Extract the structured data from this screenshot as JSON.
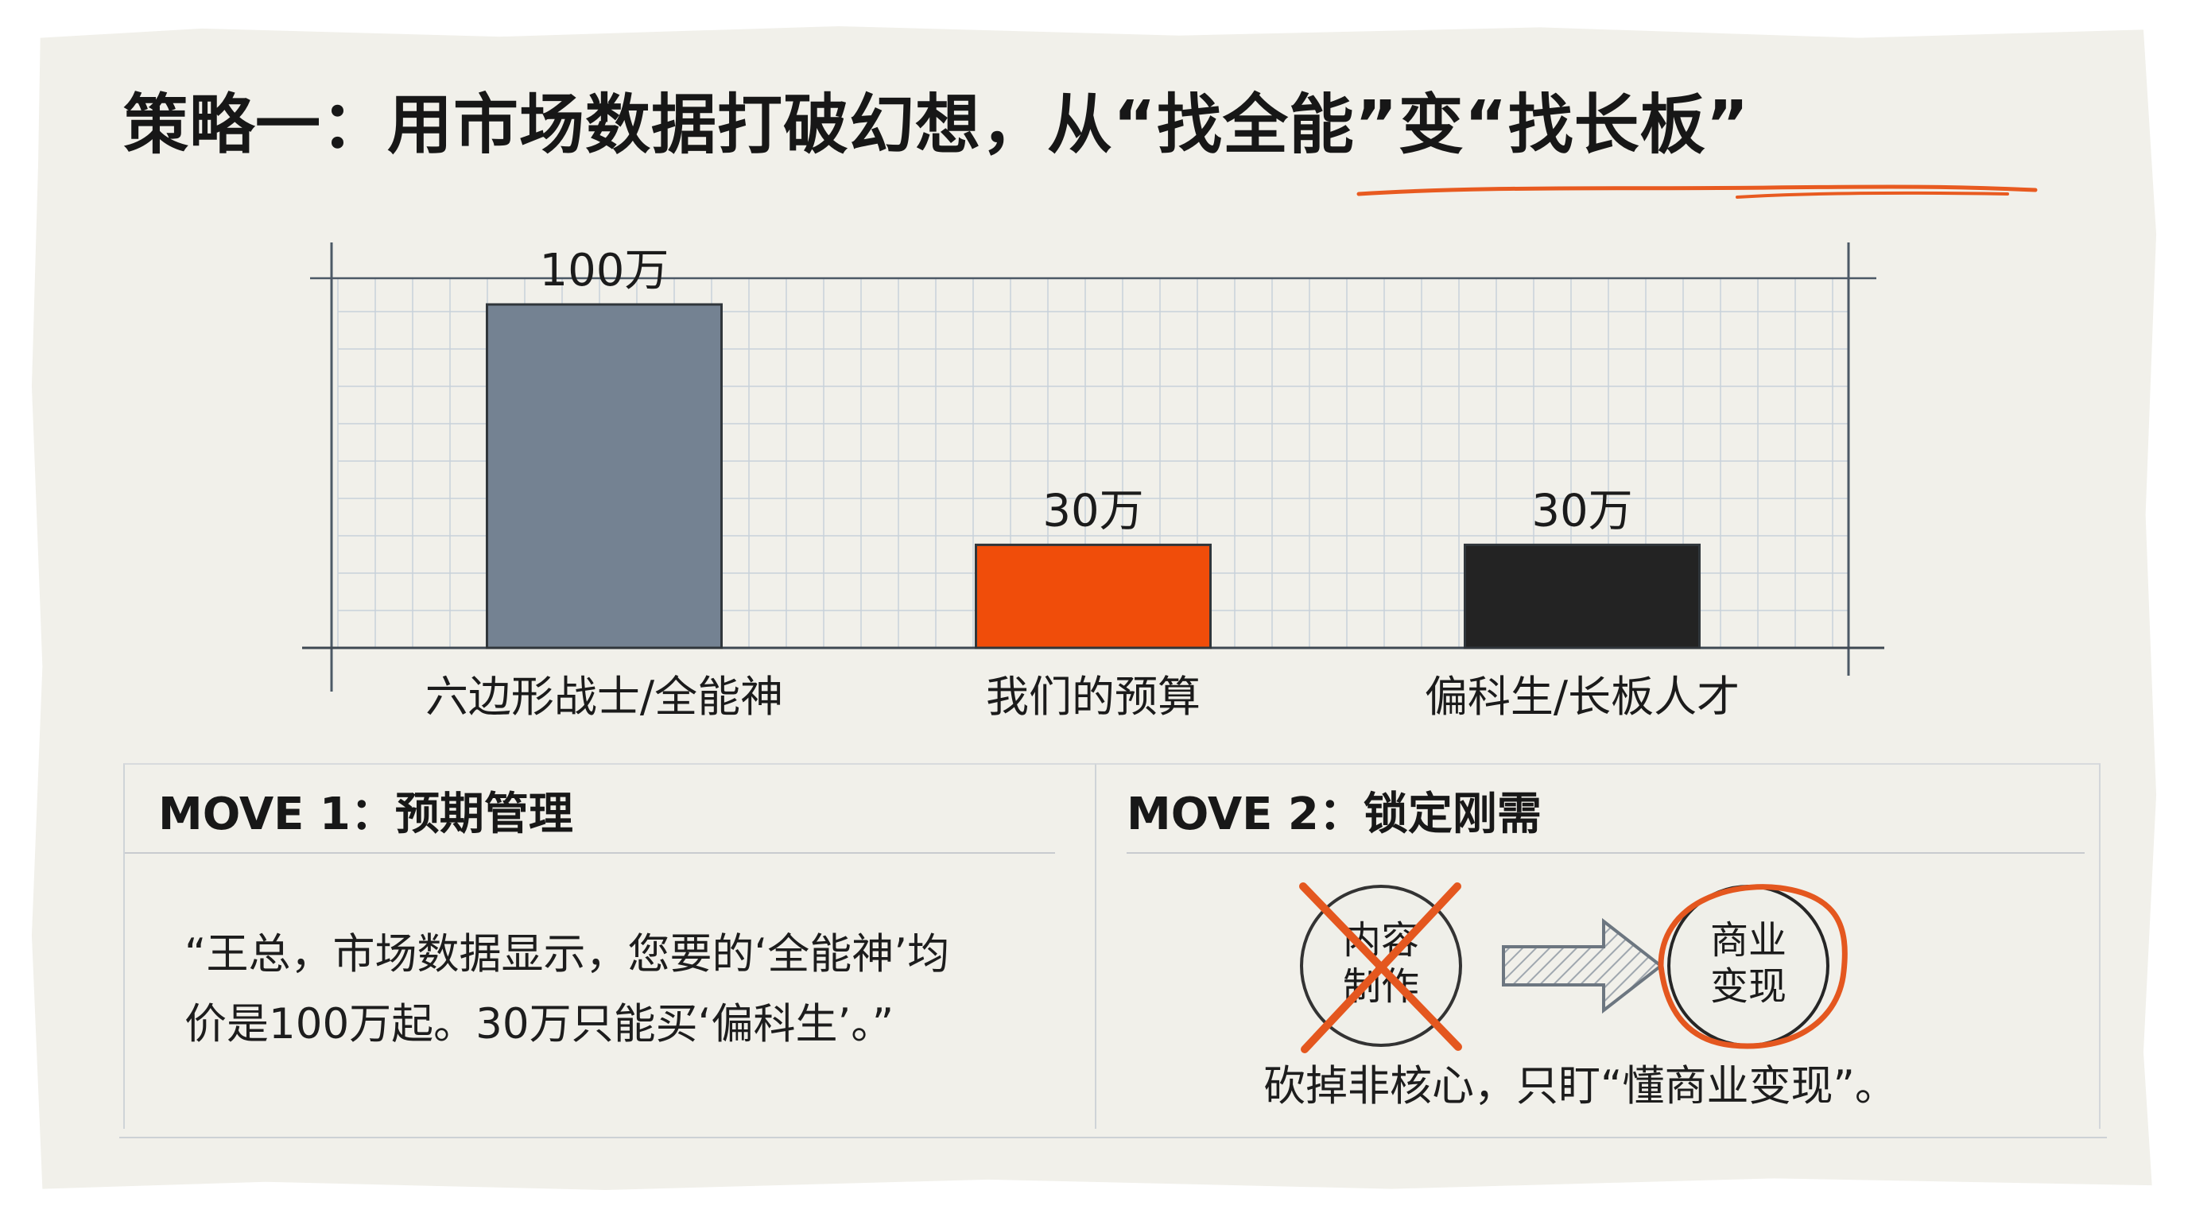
{
  "title": "策略一：用市场数据打破幻想，从“找全能”变“找长板”",
  "colors": {
    "paper": "#f1f0ea",
    "accent_orange": "#f04d0a",
    "bar_gray": "#748292",
    "bar_black": "#232323",
    "grid": "#c8d1da",
    "text": "#1b1b1b"
  },
  "chart_data": {
    "type": "bar",
    "categories": [
      "六边形战士/全能神",
      "我们的预算",
      "偏科生/长板人才"
    ],
    "values": [
      100,
      30,
      30
    ],
    "value_labels": [
      "100万",
      "30万",
      "30万"
    ],
    "colors": [
      "#748292",
      "#f04d0a",
      "#232323"
    ],
    "title": "",
    "xlabel": "",
    "ylabel": "",
    "ylim": [
      0,
      100
    ],
    "grid": true,
    "legend": "none"
  },
  "moves": [
    {
      "title": "MOVE 1：预期管理",
      "quote_line1": "“王总，市场数据显示，您要的‘全能神’均",
      "quote_line2": "价是100万起。30万只能买‘偏科生’。”"
    },
    {
      "title": "MOVE 2：锁定刚需",
      "crossed_line1": "内容",
      "crossed_line2": "制作",
      "circled_line1": "商业",
      "circled_line2": "变现",
      "caption": "砍掉非核心，只盯“懂商业变现”。",
      "crossed_icon": "cross-out-icon",
      "arrow_icon": "right-arrow-icon"
    }
  ]
}
